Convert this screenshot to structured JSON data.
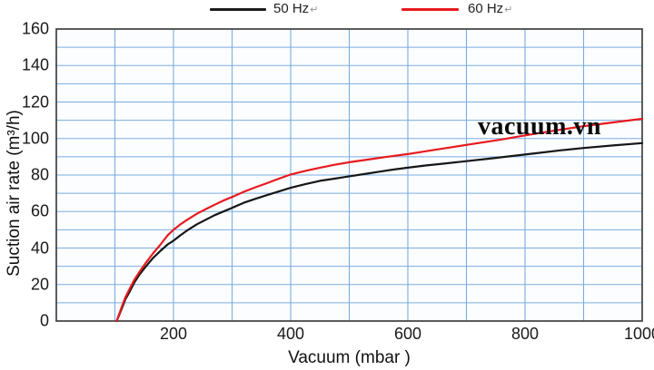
{
  "watermark": "vacuum.vn",
  "legend": {
    "items": [
      {
        "label": "50 Hz",
        "mark": "↵",
        "color": "#1d1d1f"
      },
      {
        "label": "60 Hz",
        "mark": "↵",
        "color": "#e8191d"
      }
    ]
  },
  "chart_data": {
    "type": "line",
    "title": "",
    "xlabel": "Vacuum (mbar )",
    "ylabel": "Suction air rate (m³/h)",
    "xlim": [
      0,
      1000
    ],
    "ylim": [
      0,
      160
    ],
    "x_grid_step": 100,
    "y_grid_step": 10,
    "x_tick_labels": [
      200,
      400,
      600,
      800,
      1000
    ],
    "y_tick_labels": [
      0,
      20,
      40,
      60,
      80,
      100,
      120,
      140,
      160
    ],
    "grid_on": true,
    "legend_position": "top",
    "grid_color": "#79ade1",
    "border_color": "#3f3f3f",
    "bg_color": "#fcfdff",
    "series": [
      {
        "name": "50 Hz",
        "color": "#161616",
        "points": [
          [
            103,
            0
          ],
          [
            107,
            3
          ],
          [
            112,
            7
          ],
          [
            118,
            12
          ],
          [
            125,
            16
          ],
          [
            133,
            21
          ],
          [
            142,
            25.5
          ],
          [
            152,
            29.5
          ],
          [
            165,
            34.5
          ],
          [
            178,
            38.5
          ],
          [
            190,
            42
          ],
          [
            200,
            44
          ],
          [
            212,
            47
          ],
          [
            225,
            50
          ],
          [
            240,
            53
          ],
          [
            255,
            55.5
          ],
          [
            270,
            58
          ],
          [
            285,
            60
          ],
          [
            300,
            62
          ],
          [
            320,
            64.8
          ],
          [
            340,
            67
          ],
          [
            360,
            69
          ],
          [
            380,
            71
          ],
          [
            400,
            73
          ],
          [
            425,
            75
          ],
          [
            450,
            76.8
          ],
          [
            475,
            78
          ],
          [
            500,
            79.3
          ],
          [
            525,
            80.5
          ],
          [
            550,
            81.8
          ],
          [
            575,
            83
          ],
          [
            600,
            84
          ],
          [
            630,
            85.2
          ],
          [
            660,
            86.2
          ],
          [
            700,
            87.6
          ],
          [
            740,
            89
          ],
          [
            780,
            90.5
          ],
          [
            820,
            92
          ],
          [
            860,
            93.5
          ],
          [
            900,
            94.8
          ],
          [
            950,
            96.2
          ],
          [
            1000,
            97.5
          ]
        ]
      },
      {
        "name": "60 Hz",
        "color": "#e8191d",
        "points": [
          [
            103,
            0
          ],
          [
            107,
            3.5
          ],
          [
            112,
            8
          ],
          [
            118,
            13
          ],
          [
            125,
            17.5
          ],
          [
            133,
            22.5
          ],
          [
            142,
            27
          ],
          [
            152,
            31.5
          ],
          [
            165,
            37
          ],
          [
            178,
            42
          ],
          [
            190,
            47
          ],
          [
            200,
            50
          ],
          [
            212,
            53
          ],
          [
            225,
            55.8
          ],
          [
            240,
            58.8
          ],
          [
            255,
            61.3
          ],
          [
            270,
            63.7
          ],
          [
            285,
            66
          ],
          [
            300,
            68
          ],
          [
            320,
            70.8
          ],
          [
            340,
            73.3
          ],
          [
            360,
            75.6
          ],
          [
            380,
            78
          ],
          [
            400,
            80.3
          ],
          [
            425,
            82.3
          ],
          [
            450,
            84
          ],
          [
            475,
            85.6
          ],
          [
            500,
            87
          ],
          [
            530,
            88.4
          ],
          [
            560,
            89.8
          ],
          [
            600,
            91.5
          ],
          [
            640,
            93.5
          ],
          [
            680,
            95.5
          ],
          [
            720,
            97.5
          ],
          [
            760,
            99.5
          ],
          [
            800,
            101.7
          ],
          [
            850,
            104.3
          ],
          [
            900,
            106.8
          ],
          [
            950,
            108.8
          ],
          [
            1000,
            110.8
          ]
        ]
      }
    ]
  }
}
